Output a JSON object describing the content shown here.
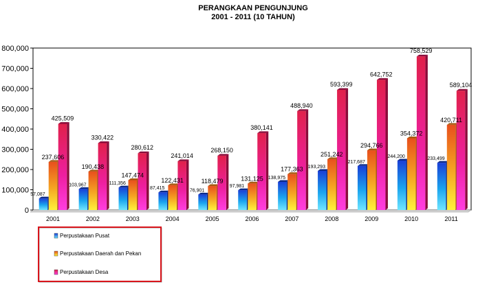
{
  "chart_data": {
    "type": "bar",
    "title": "PERANGKAAN PENGUNJUNG",
    "subtitle": "2001 -  2011 (10 TAHUN)",
    "xlabel": "",
    "ylabel": "",
    "ylim": [
      0,
      800000
    ],
    "yticks": [
      0,
      100000,
      200000,
      300000,
      400000,
      500000,
      600000,
      700000,
      800000
    ],
    "ytick_labels": [
      "0",
      "100,000",
      "200,000",
      "300,000",
      "400,000",
      "500,000",
      "600,000",
      "700,000",
      "800,000"
    ],
    "grid": false,
    "legend_position": "bottom-left",
    "categories": [
      "2001",
      "2002",
      "2003",
      "2004",
      "2005",
      "2006",
      "2007",
      "2008",
      "2009",
      "2010",
      "2011"
    ],
    "series": [
      {
        "name": "Perpustakaan Pusat",
        "color": "#1f5fd8",
        "values": [
          57087,
          103967,
          111356,
          87415,
          76901,
          97981,
          138975,
          193293,
          217687,
          244200,
          233499
        ],
        "labels": [
          "57,087",
          "103,967",
          "111,356",
          "87,415",
          "76,901",
          "97,981",
          "138,975",
          "193,293",
          "217,687",
          "244,200",
          "233,499"
        ]
      },
      {
        "name": "Perpustakaan Daerah dan Pekan",
        "color": "#f08a1a",
        "values": [
          237606,
          190438,
          147474,
          122431,
          118479,
          131125,
          177363,
          251242,
          294766,
          354372,
          420711
        ],
        "labels": [
          "237,606",
          "190,438",
          "147,474",
          "122,431",
          "118,479",
          "131,125",
          "177,363",
          "251,242",
          "294,766",
          "354,372",
          "420,711"
        ]
      },
      {
        "name": "Perpustakaan Desa",
        "color": "#e0206a",
        "values": [
          425509,
          330422,
          280612,
          241014,
          268150,
          380141,
          488940,
          593399,
          642752,
          758529,
          589104
        ],
        "labels": [
          "425,509",
          "330,422",
          "280,612",
          "241,014",
          "268,150",
          "380,141",
          "488,940",
          "593,399",
          "642,752",
          "758,529",
          "589,104"
        ]
      }
    ]
  }
}
